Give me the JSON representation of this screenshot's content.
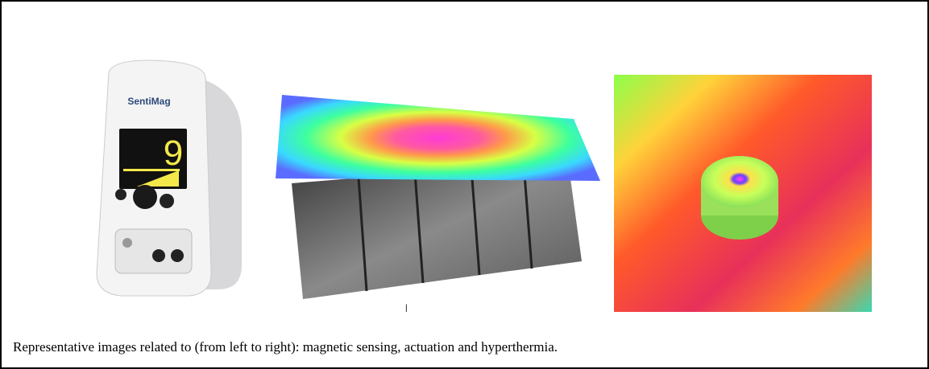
{
  "device": {
    "brand": "SentiMag",
    "display": "9"
  },
  "caption": "Representative images related to (from left to right): magnetic sensing, actuation and hyperthermia."
}
